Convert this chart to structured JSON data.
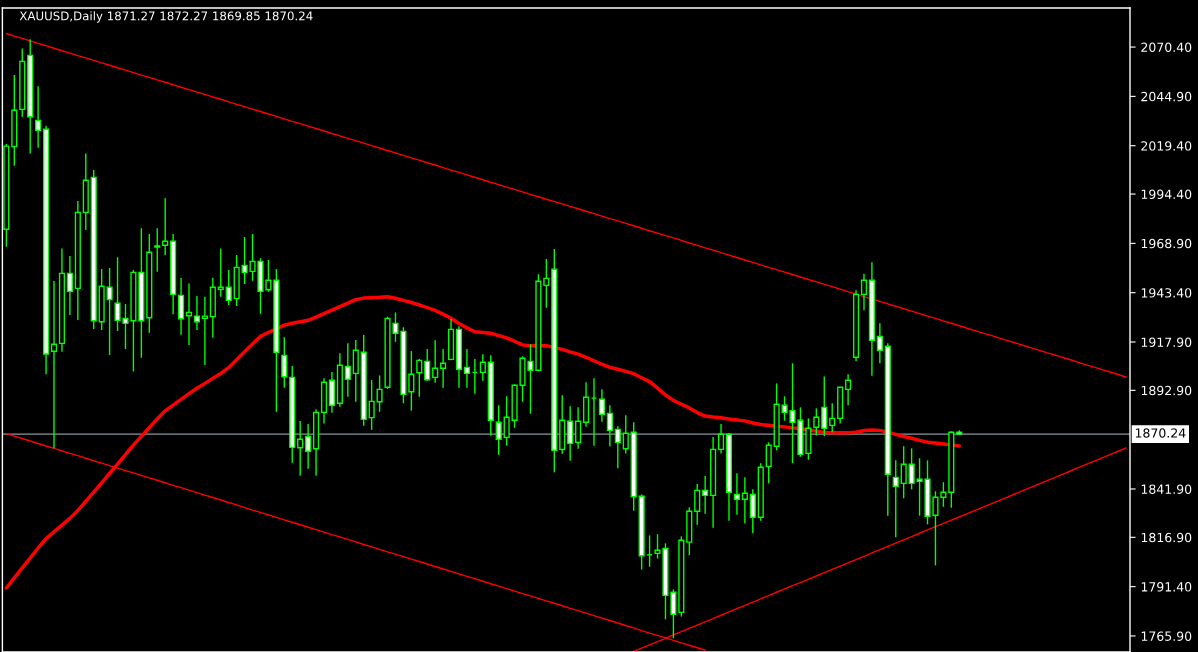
{
  "chart_data": {
    "type": "candlestick",
    "title": "XAUUSD,Daily 1871.27 1872.27 1869.85 1870.24",
    "categories": [
      null,
      null,
      null,
      null,
      null,
      null,
      null,
      null,
      null,
      null,
      null,
      null,
      null,
      null,
      null,
      null,
      null,
      null,
      null,
      null,
      null,
      null,
      null,
      null,
      null,
      null,
      null,
      null,
      null,
      null,
      null,
      null,
      null,
      null,
      null,
      null,
      null,
      null,
      null,
      null,
      null,
      null,
      null,
      null,
      null,
      null,
      null,
      null,
      null,
      null,
      null,
      null,
      null,
      null,
      null,
      null,
      null,
      null,
      null,
      null,
      null,
      null,
      null,
      null,
      null,
      null,
      null,
      null,
      null,
      null,
      null,
      null,
      null,
      null,
      null,
      null,
      null,
      null,
      null,
      null,
      null,
      null,
      null,
      null,
      null,
      null,
      null,
      null,
      null,
      null,
      null,
      null,
      null,
      null,
      null,
      null,
      null,
      null,
      null,
      null,
      null,
      null,
      null,
      null,
      null,
      null,
      null,
      null,
      null,
      null,
      null,
      null,
      null,
      null,
      null,
      null,
      null,
      null,
      null,
      null,
      null,
      null,
      null,
      null,
      null,
      null,
      null,
      null,
      null,
      null,
      null,
      null,
      null,
      null,
      null,
      null,
      null,
      null,
      null,
      null,
      null,
      null
    ],
    "ohlc": [
      [
        1976.2,
        2020.3,
        1967.2,
        2019.2
      ],
      [
        2018.9,
        2055.9,
        2009.0,
        2037.7
      ],
      [
        2038.2,
        2069.7,
        2034.4,
        2063.0
      ],
      [
        2066.1,
        2074.4,
        2015.4,
        2034.4
      ],
      [
        2032.5,
        2050.2,
        2018.3,
        2027.3
      ],
      [
        2027.9,
        2029.7,
        1901.2,
        1911.7
      ],
      [
        1913.1,
        1949.4,
        1862.9,
        1916.7
      ],
      [
        1917.2,
        1966.3,
        1912.9,
        1953.4
      ],
      [
        1953.4,
        1962.4,
        1931.8,
        1944.1
      ],
      [
        1945.6,
        1990.8,
        1929.3,
        1984.9
      ],
      [
        1984.9,
        2015.4,
        1975.8,
        2001.5
      ],
      [
        2003.0,
        2006.8,
        1924.6,
        1928.9
      ],
      [
        1928.4,
        1955.6,
        1924.1,
        1946.7
      ],
      [
        1946.2,
        1956.1,
        1911.2,
        1939.9
      ],
      [
        1937.9,
        1961.7,
        1923.6,
        1929.1
      ],
      [
        1930.1,
        1937.5,
        1914.3,
        1927.5
      ],
      [
        1928.9,
        1955.1,
        1902.6,
        1953.9
      ],
      [
        1953.9,
        1976.7,
        1909.8,
        1928.9
      ],
      [
        1930.4,
        1973.7,
        1922.7,
        1964.3
      ],
      [
        1967.0,
        1976.7,
        1954.2,
        1967.5
      ],
      [
        1967.9,
        1992.2,
        1962.9,
        1970.0
      ],
      [
        1970.0,
        1973.7,
        1932.3,
        1942.5
      ],
      [
        1942.0,
        1951.0,
        1921.6,
        1929.9
      ],
      [
        1931.5,
        1948.2,
        1916.3,
        1933.2
      ],
      [
        1931.3,
        1941.7,
        1924.1,
        1928.4
      ],
      [
        1930.1,
        1941.3,
        1906.0,
        1931.3
      ],
      [
        1931.0,
        1951.1,
        1920.1,
        1946.2
      ],
      [
        1945.1,
        1966.3,
        1941.3,
        1946.2
      ],
      [
        1946.2,
        1955.1,
        1937.0,
        1939.4
      ],
      [
        1940.3,
        1962.9,
        1936.5,
        1956.5
      ],
      [
        1957.5,
        1972.2,
        1947.9,
        1953.9
      ],
      [
        1954.4,
        1973.7,
        1949.6,
        1959.6
      ],
      [
        1959.6,
        1961.2,
        1932.5,
        1944.1
      ],
      [
        1944.9,
        1960.3,
        1943.9,
        1949.8
      ],
      [
        1949.8,
        1955.6,
        1881.8,
        1912.6
      ],
      [
        1911.0,
        1920.3,
        1894.3,
        1899.9
      ],
      [
        1899.6,
        1905.5,
        1855.5,
        1863.4
      ],
      [
        1863.2,
        1877.0,
        1848.8,
        1867.6
      ],
      [
        1869.1,
        1875.5,
        1852.4,
        1861.4
      ],
      [
        1862.7,
        1883.1,
        1848.8,
        1881.5
      ],
      [
        1881.5,
        1899.1,
        1875.7,
        1897.1
      ],
      [
        1898.1,
        1902.4,
        1881.3,
        1885.2
      ],
      [
        1886.2,
        1912.1,
        1884.4,
        1905.9
      ],
      [
        1905.3,
        1917.2,
        1889.6,
        1898.6
      ],
      [
        1901.7,
        1918.9,
        1887.0,
        1913.6
      ],
      [
        1912.6,
        1921.5,
        1874.6,
        1877.9
      ],
      [
        1878.8,
        1898.2,
        1872.5,
        1887.2
      ],
      [
        1887.0,
        1900.6,
        1881.8,
        1893.4
      ],
      [
        1894.5,
        1931.0,
        1893.6,
        1930.1
      ],
      [
        1927.5,
        1933.2,
        1918.0,
        1922.4
      ],
      [
        1923.4,
        1925.5,
        1886.2,
        1890.8
      ],
      [
        1892.2,
        1913.2,
        1882.4,
        1901.2
      ],
      [
        1902.0,
        1909.1,
        1889.6,
        1908.4
      ],
      [
        1907.9,
        1914.3,
        1897.9,
        1898.4
      ],
      [
        1899.6,
        1918.8,
        1896.8,
        1904.3
      ],
      [
        1904.3,
        1914.3,
        1894.3,
        1906.9
      ],
      [
        1908.9,
        1929.8,
        1908.4,
        1924.4
      ],
      [
        1924.4,
        1926.0,
        1894.3,
        1903.8
      ],
      [
        1904.8,
        1914.3,
        1894.3,
        1901.7
      ],
      [
        1902.2,
        1909.1,
        1891.2,
        1902.2
      ],
      [
        1902.2,
        1911.5,
        1897.9,
        1907.4
      ],
      [
        1907.4,
        1911.0,
        1869.4,
        1877.4
      ],
      [
        1876.4,
        1885.2,
        1859.6,
        1867.6
      ],
      [
        1868.6,
        1889.8,
        1864.3,
        1879.0
      ],
      [
        1877.4,
        1896.0,
        1873.6,
        1895.5
      ],
      [
        1895.5,
        1910.5,
        1887.0,
        1909.5
      ],
      [
        1907.9,
        1916.7,
        1880.8,
        1903.3
      ],
      [
        1903.3,
        1952.9,
        1902.7,
        1949.3
      ],
      [
        1947.2,
        1960.8,
        1935.6,
        1950.8
      ],
      [
        1955.5,
        1966.0,
        1850.5,
        1861.9
      ],
      [
        1862.4,
        1890.3,
        1860.1,
        1877.4
      ],
      [
        1876.9,
        1884.7,
        1856.5,
        1865.5
      ],
      [
        1866.0,
        1884.1,
        1862.7,
        1876.9
      ],
      [
        1876.4,
        1897.1,
        1874.1,
        1889.3
      ],
      [
        1888.9,
        1899.1,
        1864.3,
        1888.9
      ],
      [
        1888.3,
        1893.4,
        1876.7,
        1880.5
      ],
      [
        1881.0,
        1885.2,
        1863.8,
        1872.2
      ],
      [
        1872.7,
        1874.3,
        1852.6,
        1866.0
      ],
      [
        1862.7,
        1880.0,
        1860.3,
        1870.7
      ],
      [
        1871.2,
        1876.4,
        1830.7,
        1837.9
      ],
      [
        1838.1,
        1839.1,
        1800.2,
        1807.4
      ],
      [
        1807.9,
        1817.9,
        1801.7,
        1807.9
      ],
      [
        1808.6,
        1818.5,
        1805.9,
        1810.2
      ],
      [
        1811.2,
        1813.8,
        1774.5,
        1786.9
      ],
      [
        1788.5,
        1790.0,
        1764.7,
        1777.1
      ],
      [
        1778.1,
        1817.4,
        1775.9,
        1815.4
      ],
      [
        1814.4,
        1832.4,
        1807.6,
        1830.4
      ],
      [
        1830.4,
        1844.5,
        1823.4,
        1841.2
      ],
      [
        1841.2,
        1848.6,
        1829.1,
        1838.6
      ],
      [
        1838.6,
        1868.8,
        1821.9,
        1862.4
      ],
      [
        1862.4,
        1875.5,
        1860.3,
        1870.2
      ],
      [
        1870.2,
        1870.7,
        1825.5,
        1840.2
      ],
      [
        1839.1,
        1850.0,
        1828.6,
        1836.6
      ],
      [
        1836.6,
        1848.0,
        1824.0,
        1839.7
      ],
      [
        1839.1,
        1841.7,
        1819.0,
        1827.3
      ],
      [
        1827.3,
        1855.2,
        1825.5,
        1853.1
      ],
      [
        1853.6,
        1866.0,
        1844.8,
        1864.5
      ],
      [
        1864.0,
        1896.5,
        1861.9,
        1885.7
      ],
      [
        1885.2,
        1889.8,
        1877.2,
        1881.5
      ],
      [
        1882.4,
        1906.9,
        1855.2,
        1876.4
      ],
      [
        1877.4,
        1884.1,
        1858.6,
        1859.8
      ],
      [
        1860.3,
        1878.4,
        1857.0,
        1873.3
      ],
      [
        1873.8,
        1883.6,
        1869.6,
        1879.0
      ],
      [
        1884.1,
        1900.1,
        1869.1,
        1873.3
      ],
      [
        1874.8,
        1886.2,
        1871.2,
        1878.4
      ],
      [
        1878.4,
        1894.5,
        1875.8,
        1894.5
      ],
      [
        1893.4,
        1901.2,
        1885.2,
        1898.1
      ],
      [
        1910.0,
        1944.6,
        1907.9,
        1942.5
      ],
      [
        1942.5,
        1953.2,
        1934.3,
        1949.8
      ],
      [
        1949.8,
        1959.1,
        1900.5,
        1918.8
      ],
      [
        1920.8,
        1927.6,
        1906.9,
        1913.6
      ],
      [
        1915.7,
        1917.2,
        1828.1,
        1849.5
      ],
      [
        1847.9,
        1856.7,
        1816.9,
        1843.3
      ],
      [
        1844.8,
        1864.0,
        1837.1,
        1854.7
      ],
      [
        1854.7,
        1862.9,
        1841.7,
        1844.8
      ],
      [
        1846.9,
        1857.8,
        1828.1,
        1845.9
      ],
      [
        1846.9,
        1856.7,
        1823.6,
        1827.8
      ],
      [
        1828.3,
        1840.7,
        1802.4,
        1837.6
      ],
      [
        1837.6,
        1845.4,
        1832.7,
        1840.2
      ],
      [
        1840.2,
        1871.7,
        1832.2,
        1871.2
      ],
      [
        1871.27,
        1872.27,
        1869.85,
        1870.24
      ],
      null,
      null,
      null,
      null,
      null,
      null,
      null,
      null,
      null,
      null,
      null,
      null,
      null,
      null,
      null,
      null,
      null,
      null,
      null,
      null,
      null
    ],
    "series": [
      {
        "type": "line",
        "color": "#ff0000",
        "values": [
          1790.7,
          1795.9,
          1801.1,
          1806.2,
          1811.4,
          1816.2,
          1819.7,
          1823.2,
          1826.7,
          1830.8,
          1835.5,
          1840.3,
          1845.1,
          1849.9,
          1854.8,
          1859.7,
          1864.6,
          1869.1,
          1873.6,
          1878.1,
          1882.3,
          1885.3,
          1888.2,
          1891.2,
          1894.0,
          1896.5,
          1899.1,
          1901.6,
          1904.6,
          1908.7,
          1912.8,
          1916.9,
          1920.8,
          1922.8,
          1924.7,
          1926.6,
          1927.6,
          1928.4,
          1929.1,
          1930.8,
          1932.6,
          1934.4,
          1936.2,
          1938.0,
          1939.8,
          1940.6,
          1940.8,
          1941.0,
          1941.3,
          1940.5,
          1939.4,
          1938.3,
          1937.1,
          1935.7,
          1934.2,
          1932.3,
          1930.2,
          1927.5,
          1925.2,
          1923.2,
          1922.8,
          1922.4,
          1921.2,
          1920.0,
          1918.3,
          1916.4,
          1916.0,
          1916.0,
          1916.0,
          1915.1,
          1914.1,
          1912.8,
          1911.6,
          1910.0,
          1908.2,
          1906.4,
          1904.8,
          1903.8,
          1902.7,
          1901.5,
          1899.4,
          1897.4,
          1894.0,
          1890.5,
          1887.7,
          1885.7,
          1883.8,
          1881.4,
          1879.6,
          1879.1,
          1878.7,
          1878.1,
          1877.6,
          1877.1,
          1876.0,
          1875.2,
          1874.8,
          1874.4,
          1874.0,
          1873.5,
          1873.0,
          1872.4,
          1871.8,
          1871.1,
          1871.0,
          1871.0,
          1871.0,
          1871.2,
          1872.1,
          1872.4,
          1872.2,
          1871.3,
          1870.1,
          1869.0,
          1868.1,
          1867.0,
          1866.1,
          1865.7,
          1865.2,
          1864.7,
          1864.1,
          null,
          null,
          null,
          null,
          null,
          null,
          null,
          null,
          null,
          null,
          null,
          null,
          null,
          null,
          null,
          null,
          null,
          null,
          null,
          null,
          null
        ]
      },
      {
        "type": "line",
        "color": "#ff0000",
        "values": [
          2077.4,
          2076.1,
          2074.9,
          2073.6,
          2072.3,
          2071.1,
          2069.8,
          2068.5,
          2067.3,
          2066.0,
          2064.8,
          2063.5,
          2062.2,
          2061.0,
          2059.7,
          2058.5,
          2057.2,
          2055.9,
          2054.7,
          2053.4,
          2052.2,
          2050.9,
          2049.6,
          2048.4,
          2047.1,
          2045.9,
          2044.6,
          2043.4,
          2042.1,
          2040.8,
          2039.6,
          2038.3,
          2037.1,
          2035.8,
          2034.6,
          2033.3,
          2032.0,
          2030.8,
          2029.5,
          2028.3,
          2027.0,
          2025.7,
          2024.5,
          2023.2,
          2022.0,
          2020.7,
          2019.4,
          2018.2,
          2016.9,
          2015.7,
          2014.4,
          2013.1,
          2011.9,
          2010.6,
          2009.4,
          2008.1,
          2006.8,
          2005.6,
          2004.3,
          2003.1,
          2001.8,
          2000.5,
          1999.3,
          1998.0,
          1996.8,
          1995.5,
          1994.2,
          1993.0,
          1991.7,
          1990.5,
          1989.3,
          1988.0,
          1986.8,
          1985.5,
          1984.3,
          1983.0,
          1981.7,
          1980.5,
          1979.2,
          1978.0,
          1976.7,
          1975.4,
          1974.2,
          1972.9,
          1971.7,
          1970.4,
          1969.1,
          1967.9,
          1966.6,
          1965.4,
          1964.1,
          1962.8,
          1961.6,
          1960.3,
          1959.1,
          1957.8,
          1956.5,
          1955.3,
          1954.0,
          1952.8,
          1951.5,
          1950.2,
          1949.0,
          1947.7,
          1946.5,
          1945.2,
          1943.9,
          1942.7,
          1941.4,
          1940.2,
          1938.9,
          1937.6,
          1936.4,
          1935.1,
          1933.9,
          1932.6,
          1931.3,
          1930.1,
          1928.8,
          1927.6,
          1926.3,
          1925.0,
          1923.8,
          1922.5,
          1921.3,
          1920.0,
          1918.7,
          1917.5,
          1916.2,
          1915.0,
          1913.7,
          1912.4,
          1911.2,
          1909.9,
          1908.7,
          1907.4,
          1906.1,
          1904.9,
          1903.6,
          1902.4,
          1901.1,
          1899.8
        ]
      },
      {
        "type": "line",
        "color": "#ff0000",
        "values": [
          1870.5,
          1869.2,
          1868.0,
          1866.7,
          1865.4,
          1864.1,
          1862.9,
          1861.6,
          1860.3,
          1859.1,
          1857.8,
          1856.5,
          1855.3,
          1854.0,
          1852.7,
          1851.4,
          1850.2,
          1848.9,
          1847.6,
          1846.4,
          1845.1,
          1843.8,
          1842.6,
          1841.3,
          1840.0,
          1838.7,
          1837.5,
          1836.2,
          1834.9,
          1833.7,
          1832.3,
          1831.0,
          1829.8,
          1828.5,
          1827.2,
          1825.9,
          1824.7,
          1823.4,
          1822.1,
          1820.9,
          1819.6,
          1818.3,
          1817.1,
          1815.8,
          1814.5,
          1813.2,
          1812.0,
          1810.7,
          1809.4,
          1808.2,
          1806.9,
          1805.6,
          1804.4,
          1803.1,
          1801.8,
          1800.5,
          1799.3,
          1798.0,
          1796.7,
          1795.5,
          1794.2,
          1792.9,
          1791.7,
          1790.4,
          1789.1,
          1787.8,
          1786.6,
          1785.3,
          1784.0,
          1782.8,
          1781.5,
          1780.2,
          1779.0,
          1777.7,
          1776.4,
          1775.1,
          1773.9,
          1772.6,
          1771.3,
          1770.1,
          1768.7,
          1767.4,
          1766.2,
          1764.9,
          1763.6,
          1762.3,
          1761.1,
          1759.8,
          1758.5,
          null,
          null,
          null,
          null,
          null,
          null,
          null,
          null,
          null,
          null,
          null,
          null,
          null,
          null,
          null,
          null,
          null,
          null,
          null,
          null,
          null,
          null,
          null,
          null,
          null,
          null,
          null,
          null,
          null,
          null,
          null,
          null,
          null,
          null,
          null,
          null,
          null,
          null,
          null,
          null,
          null,
          null,
          null,
          null,
          null,
          null,
          null,
          null,
          null,
          null,
          null,
          null,
          null
        ]
      },
      {
        "type": "line",
        "color": "#ff0000",
        "values": [
          null,
          null,
          null,
          null,
          null,
          null,
          null,
          null,
          null,
          null,
          null,
          null,
          null,
          null,
          null,
          null,
          null,
          null,
          null,
          null,
          null,
          null,
          null,
          null,
          null,
          null,
          null,
          null,
          null,
          null,
          null,
          null,
          null,
          null,
          null,
          null,
          null,
          null,
          null,
          null,
          null,
          null,
          null,
          null,
          null,
          null,
          null,
          null,
          null,
          null,
          null,
          null,
          null,
          null,
          null,
          null,
          null,
          null,
          null,
          null,
          null,
          null,
          null,
          null,
          null,
          null,
          null,
          null,
          null,
          null,
          null,
          null,
          null,
          null,
          null,
          null,
          null,
          null,
          null,
          1757.9,
          1759.6,
          1761.3,
          1763.0,
          1764.7,
          1766.4,
          1768.1,
          1769.8,
          1771.5,
          1773.2,
          1774.9,
          1776.6,
          1778.3,
          1780.0,
          1781.7,
          1783.4,
          1785.1,
          1786.8,
          1788.5,
          1790.2,
          1791.9,
          1793.5,
          1795.2,
          1796.9,
          1798.6,
          1800.3,
          1802.0,
          1803.7,
          1805.4,
          1807.1,
          1808.8,
          1810.5,
          1812.2,
          1813.9,
          1815.6,
          1817.3,
          1819.0,
          1820.7,
          1822.4,
          1824.1,
          1825.8,
          1827.4,
          1829.1,
          1830.8,
          1832.5,
          1834.2,
          1835.9,
          1837.6,
          1839.3,
          1841.0,
          1842.7,
          1844.4,
          1846.1,
          1847.8,
          1849.5,
          1851.2,
          1852.9,
          1854.6,
          1856.3,
          1858.0,
          1859.7,
          1861.4,
          1863.1
        ]
      }
    ],
    "ylim": [
      1757.6,
      2090.6
    ],
    "yticks": [
      {
        "value": 1765.9,
        "label": "1765.90"
      },
      {
        "value": 1791.4,
        "label": "1791.40"
      },
      {
        "value": 1816.9,
        "label": "1816.90"
      },
      {
        "value": 1841.9,
        "label": "1841.90"
      },
      {
        "value": 1892.9,
        "label": "1892.90"
      },
      {
        "value": 1917.9,
        "label": "1917.90"
      },
      {
        "value": 1943.4,
        "label": "1943.40"
      },
      {
        "value": 1968.9,
        "label": "1968.90"
      },
      {
        "value": 1994.4,
        "label": "1994.40"
      },
      {
        "value": 2019.4,
        "label": "2019.40"
      },
      {
        "value": 2044.9,
        "label": "2044.90"
      },
      {
        "value": 2070.4,
        "label": "2070.40"
      }
    ],
    "ref_lines": [
      {
        "axis": "y",
        "value": 1870.24,
        "label": "1870.24",
        "color": "#8c96a0"
      }
    ],
    "tick_labels": "y",
    "grid": false
  }
}
